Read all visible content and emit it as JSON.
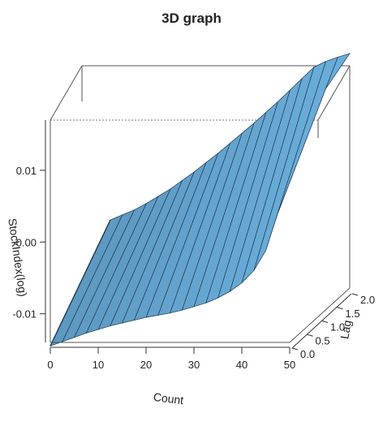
{
  "chart_data": {
    "type": "surface",
    "title": "3D graph",
    "xlabel": "Count",
    "ylabel": "Lag",
    "zlabel": "StockIndex(log)",
    "x_ticks": [
      "0",
      "10",
      "20",
      "30",
      "40",
      "50"
    ],
    "y_ticks": [
      "0.0",
      "0.5",
      "1.0",
      "1.5",
      "2.0"
    ],
    "z_ticks": [
      "0.01",
      "0.00",
      "-0.01"
    ],
    "xlim": [
      0,
      50
    ],
    "ylim": [
      0,
      2
    ],
    "zlim": [
      -0.014,
      0.017
    ],
    "surface_color": "#6aaedb",
    "edge_color": "#1e3a55",
    "x_grid": [
      0,
      2.5,
      5,
      7.5,
      10,
      12.5,
      15,
      17.5,
      20,
      22.5,
      25,
      27.5,
      30,
      32.5,
      35,
      37.5,
      40,
      42.5,
      45,
      47.5,
      50
    ],
    "y_grid": [
      0,
      2
    ],
    "z_at_lag0": [
      -0.0145,
      -0.0139,
      -0.0133,
      -0.0127,
      -0.0122,
      -0.0117,
      -0.0113,
      -0.0109,
      -0.0105,
      -0.0102,
      -0.0099,
      -0.0095,
      -0.009,
      -0.0085,
      -0.0078,
      -0.0069,
      -0.0057,
      -0.004,
      -0.0012,
      0.004,
      0.014
    ],
    "z_at_lag2": [
      -0.0045,
      -0.0038,
      -0.0031,
      -0.0022,
      -0.0012,
      -0.0002,
      0.001,
      0.0022,
      0.0035,
      0.0048,
      0.0062,
      0.0076,
      0.009,
      0.0105,
      0.012,
      0.0136,
      0.0152,
      0.0168,
      0.0176,
      0.0182,
      0.0187
    ]
  }
}
